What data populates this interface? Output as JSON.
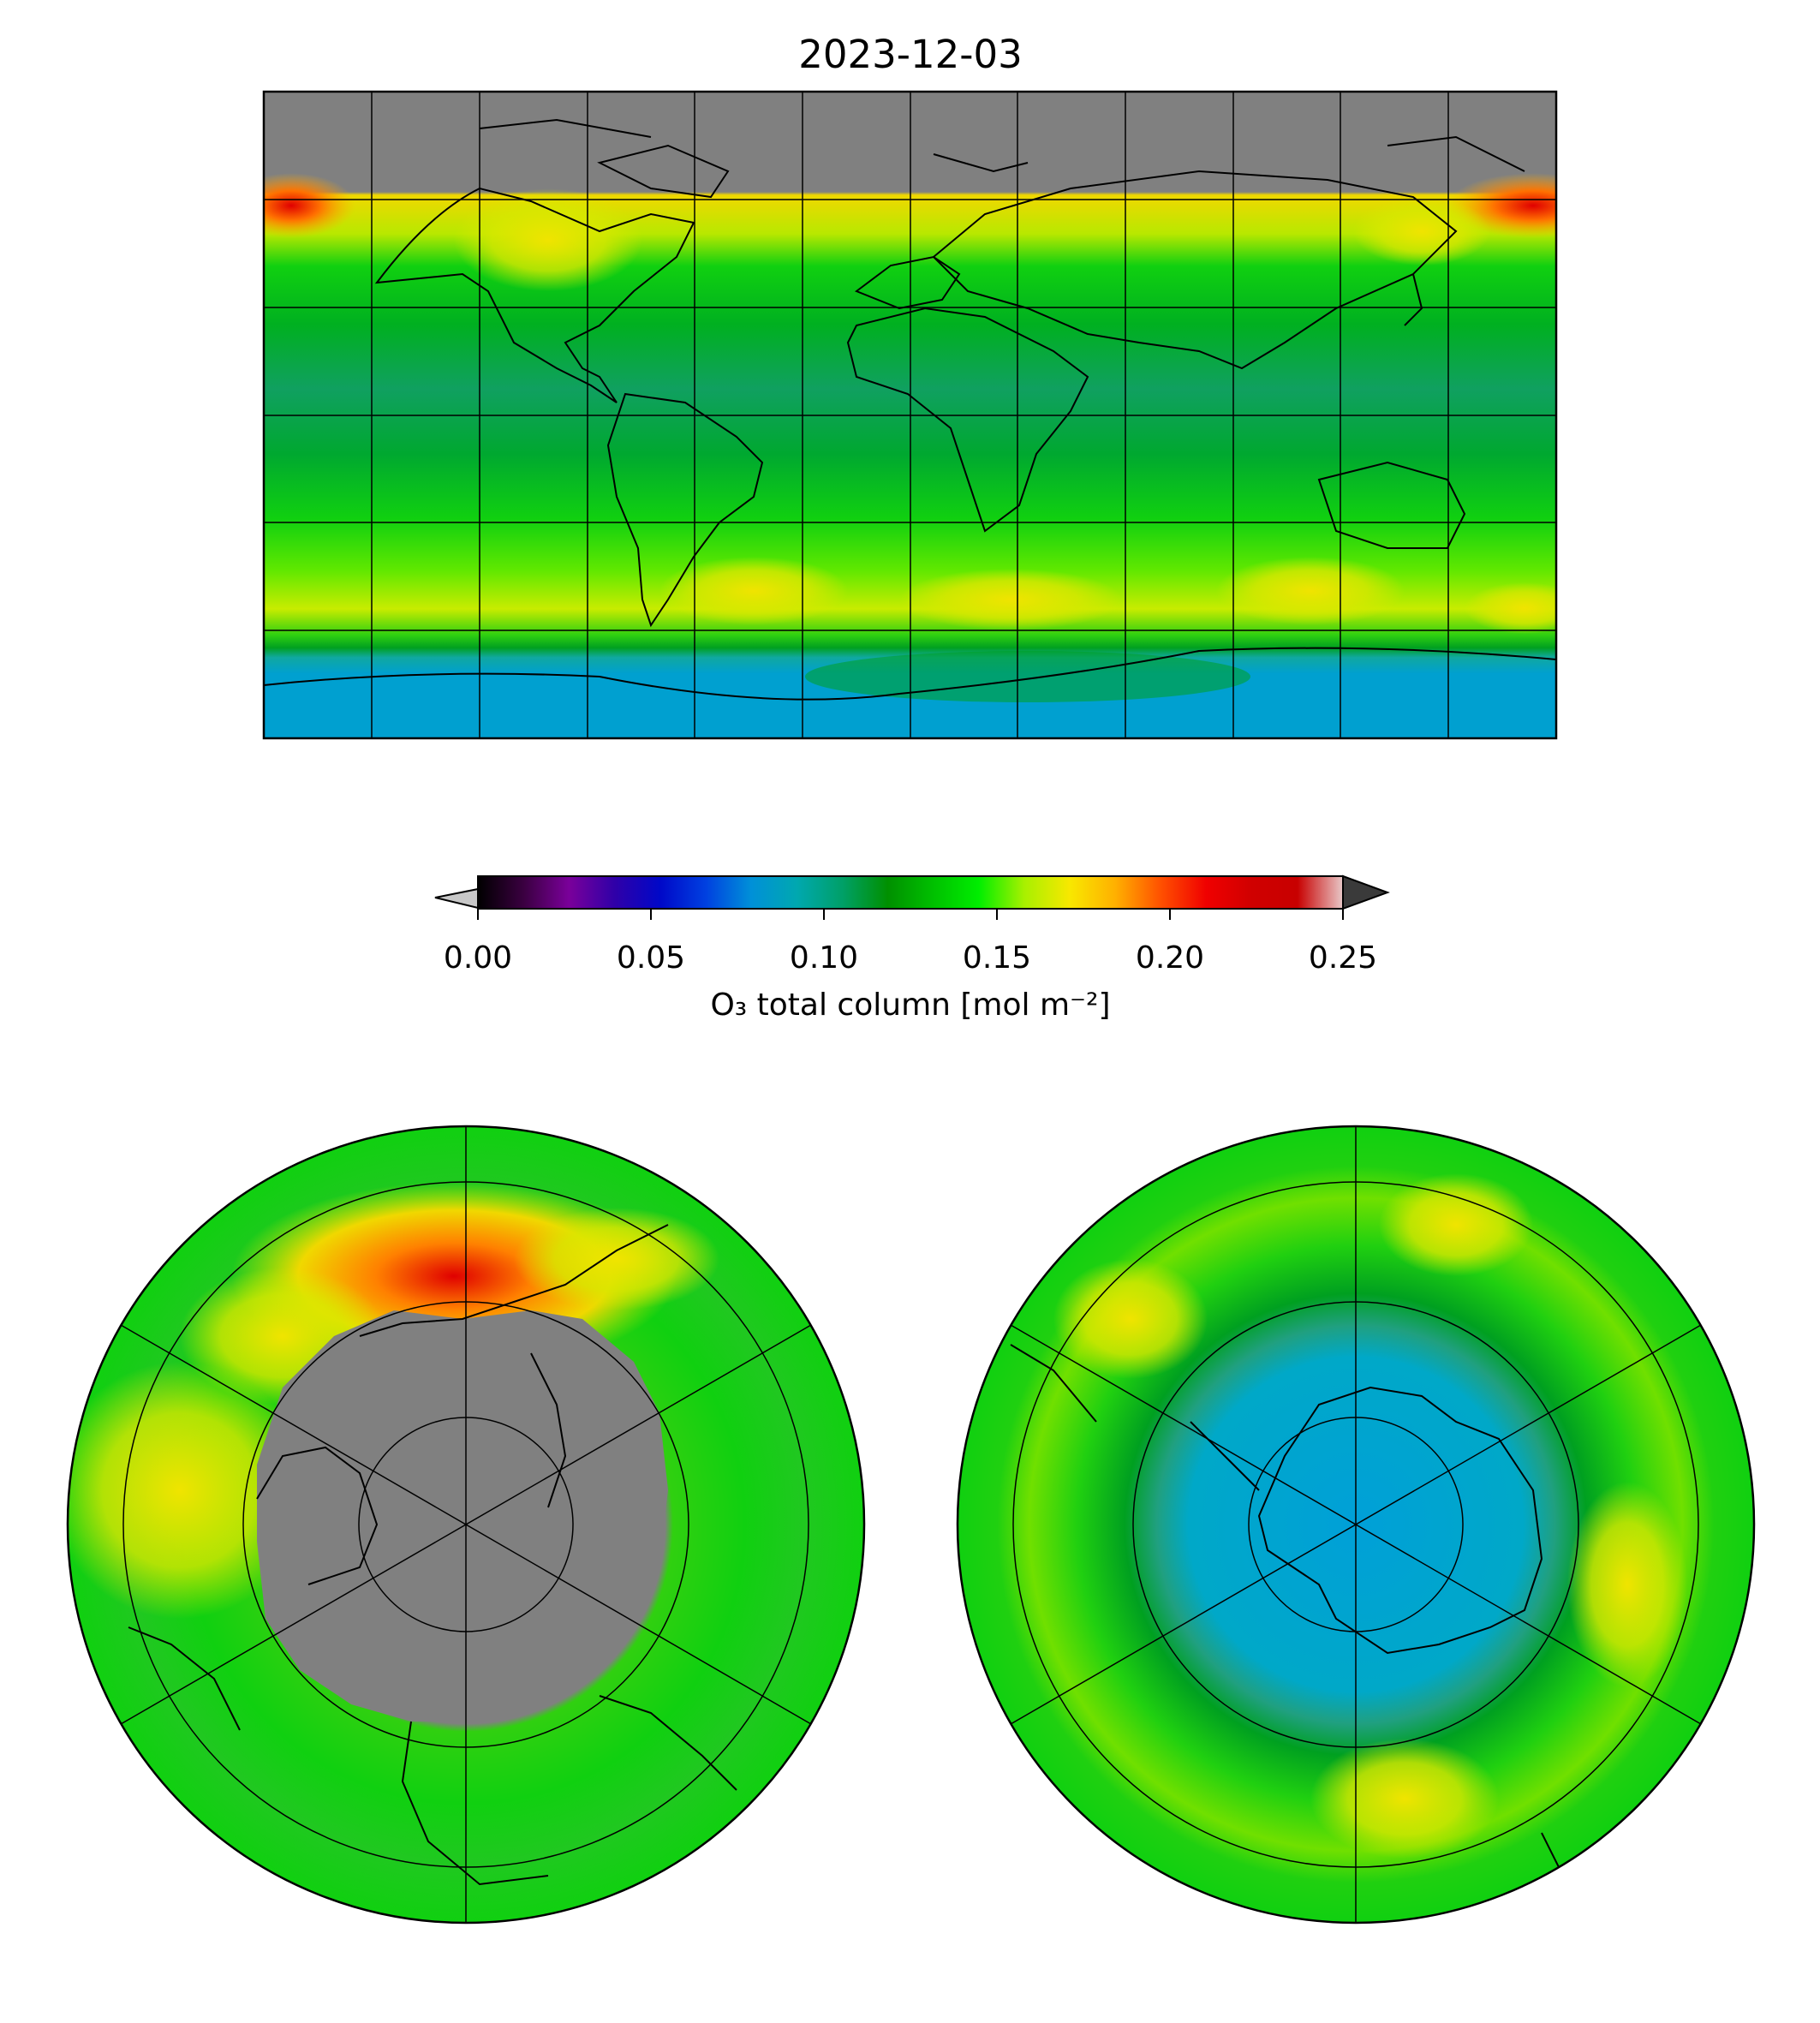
{
  "title": "2023-12-03",
  "colorbar": {
    "label": "O₃ total column [mol m⁻²]",
    "ticks": [
      "0.00",
      "0.05",
      "0.10",
      "0.15",
      "0.20",
      "0.25"
    ],
    "min": 0.0,
    "max": 0.25,
    "extend": "both",
    "under_color": "#c8c8c8",
    "over_color": "#3a3a3a",
    "colors": [
      "#000000",
      "#3a0040",
      "#7a009a",
      "#3000a8",
      "#0008c8",
      "#0040e0",
      "#0090d8",
      "#00a8b0",
      "#00a068",
      "#009000",
      "#00c000",
      "#00ee00",
      "#a8f000",
      "#f8e800",
      "#ffb000",
      "#ff5000",
      "#f00000",
      "#d00000",
      "#c80000",
      "#e8c8c8"
    ]
  },
  "colors": {
    "no_data": "#808080",
    "ozone_low_green": "#00a020",
    "ozone_mid_green": "#10d810",
    "ozone_yellow": "#e0e000",
    "ozone_orange": "#ff9a00",
    "ozone_red": "#e00000",
    "ozone_hole_blue": "#00a0d0",
    "ozone_teal": "#20a890",
    "coastline": "#000000",
    "gridline": "#000000"
  },
  "panels": [
    {
      "id": "global",
      "projection": "plate-carree"
    },
    {
      "id": "north-pole",
      "projection": "north-polar-stereographic"
    },
    {
      "id": "south-pole",
      "projection": "south-polar-stereographic"
    }
  ]
}
